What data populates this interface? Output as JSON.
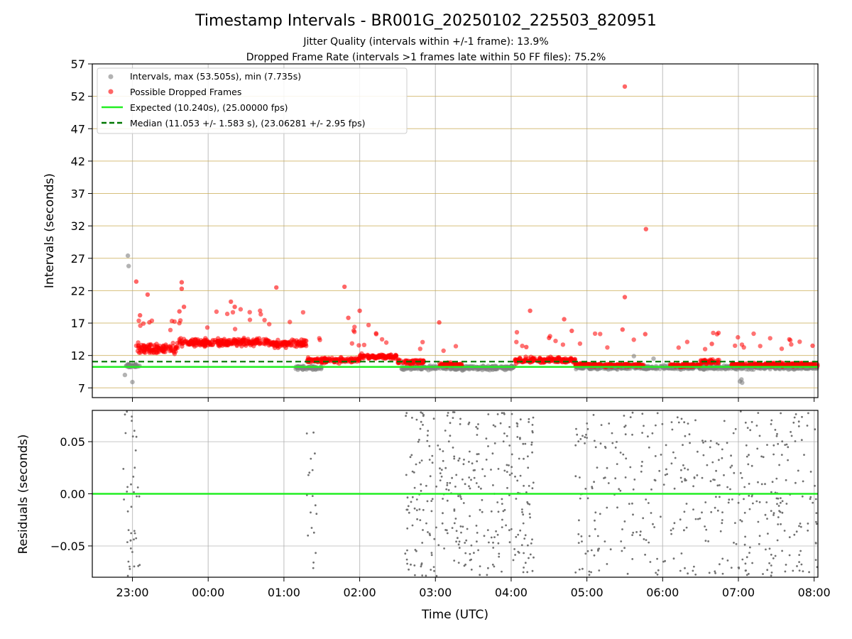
{
  "chart_data": {
    "type": "scatter",
    "title": "Timestamp Intervals - BR001G_20250102_225503_820951",
    "subtitles": [
      "Jitter Quality (intervals within +/-1 frame): 13.9%",
      "Dropped Frame Rate (intervals >1 frames late within 50 FF files): 75.2%"
    ],
    "xlabel": "Time (UTC)",
    "x_ticks": [
      "23:00",
      "00:00",
      "01:00",
      "02:00",
      "03:00",
      "04:00",
      "05:00",
      "06:00",
      "07:00",
      "08:00"
    ],
    "x_range_hours": [
      -0.53,
      9.05
    ],
    "top_panel": {
      "ylabel": "Intervals (seconds)",
      "ylim": [
        5.5,
        57
      ],
      "y_ticks": [
        7,
        12,
        17,
        22,
        27,
        32,
        37,
        42,
        47,
        52,
        57
      ],
      "grid": true,
      "legend": {
        "placement": "top-left",
        "entries": [
          {
            "label": "Intervals, max (53.505s), min (7.735s)",
            "marker": "circle",
            "color": "#808080"
          },
          {
            "label": "Possible Dropped Frames",
            "marker": "circle",
            "color": "#ff0000"
          },
          {
            "label": "Expected (10.240s), (25.00000 fps)",
            "marker": "line",
            "color": "#22ee22"
          },
          {
            "label": "Median (11.053 +/- 1.583 s), (23.06281 +/- 2.95 fps)",
            "marker": "dashed-line",
            "color": "#007700"
          }
        ]
      },
      "expected_interval": 10.24,
      "median_interval": 11.053,
      "max_interval": 53.505,
      "min_interval": 7.735,
      "series": [
        {
          "name": "Intervals, max (53.505s), min (7.735s)",
          "color": "#808080",
          "segments": [
            {
              "x0": -0.1,
              "x1": 0.1,
              "center": 10.4,
              "spread": 0.4
            },
            {
              "x0": 2.15,
              "x1": 2.5,
              "center": 10.1,
              "spread": 0.4
            },
            {
              "x0": 3.55,
              "x1": 5.05,
              "center": 10.1,
              "spread": 0.45
            },
            {
              "x0": 5.85,
              "x1": 9.05,
              "center": 10.15,
              "spread": 0.45
            }
          ],
          "outliers": [
            [
              -0.06,
              27.4
            ],
            [
              -0.05,
              25.8
            ],
            [
              0.0,
              7.9
            ],
            [
              -0.1,
              9.0
            ],
            [
              8.02,
              8.0
            ],
            [
              8.04,
              8.3
            ],
            [
              8.05,
              7.8
            ],
            [
              6.62,
              11.9
            ],
            [
              6.88,
              11.5
            ]
          ]
        },
        {
          "name": "Possible Dropped Frames",
          "color": "#ff0000",
          "segments": [
            {
              "x0": 0.05,
              "x1": 0.6,
              "center": 13.1,
              "spread": 1.0
            },
            {
              "x0": 0.6,
              "x1": 1.3,
              "center": 14.0,
              "spread": 0.9
            },
            {
              "x0": 1.3,
              "x1": 1.8,
              "center": 14.1,
              "spread": 0.8
            },
            {
              "x0": 1.8,
              "x1": 2.3,
              "center": 13.8,
              "spread": 0.8
            },
            {
              "x0": 2.3,
              "x1": 3.0,
              "center": 11.3,
              "spread": 0.6
            },
            {
              "x0": 3.0,
              "x1": 3.5,
              "center": 11.8,
              "spread": 0.6
            },
            {
              "x0": 3.5,
              "x1": 3.85,
              "center": 11.0,
              "spread": 0.5
            },
            {
              "x0": 4.05,
              "x1": 4.35,
              "center": 10.6,
              "spread": 0.4
            },
            {
              "x0": 5.05,
              "x1": 5.85,
              "center": 11.3,
              "spread": 0.6
            },
            {
              "x0": 5.85,
              "x1": 6.1,
              "center": 10.6,
              "spread": 0.3
            },
            {
              "x0": 6.1,
              "x1": 6.45,
              "center": 10.5,
              "spread": 0.3
            },
            {
              "x0": 6.45,
              "x1": 6.75,
              "center": 10.5,
              "spread": 0.3
            },
            {
              "x0": 7.1,
              "x1": 7.5,
              "center": 10.5,
              "spread": 0.3
            },
            {
              "x0": 7.5,
              "x1": 7.75,
              "center": 11.0,
              "spread": 0.5
            },
            {
              "x0": 7.9,
              "x1": 9.05,
              "center": 10.6,
              "spread": 0.4
            }
          ],
          "outliers": [
            [
              6.5,
              53.5
            ],
            [
              6.78,
              31.5
            ],
            [
              6.5,
              21.0
            ],
            [
              6.47,
              16.0
            ],
            [
              6.77,
              15.3
            ],
            [
              0.05,
              23.4
            ],
            [
              0.2,
              21.4
            ],
            [
              0.1,
              18.2
            ],
            [
              0.65,
              23.3
            ],
            [
              0.65,
              22.3
            ],
            [
              0.68,
              19.5
            ],
            [
              0.62,
              18.8
            ],
            [
              1.3,
              20.3
            ],
            [
              1.35,
              19.5
            ],
            [
              1.9,
              22.5
            ],
            [
              2.8,
              22.6
            ],
            [
              2.85,
              17.8
            ],
            [
              3.0,
              18.9
            ],
            [
              4.05,
              17.1
            ],
            [
              5.25,
              18.9
            ],
            [
              5.7,
              17.6
            ],
            [
              5.8,
              15.8
            ],
            [
              5.2,
              13.3
            ],
            [
              5.5,
              14.7
            ],
            [
              7.65,
              13.8
            ],
            [
              8.98,
              13.5
            ]
          ]
        }
      ]
    },
    "bottom_panel": {
      "ylabel": "Residuals (seconds)",
      "ylim": [
        -0.08,
        0.08
      ],
      "y_ticks": [
        "0.05",
        "0.00",
        "−0.05"
      ],
      "y_tick_values": [
        0.05,
        0.0,
        -0.05
      ],
      "grid": true,
      "zero_line_color": "#22ee22",
      "series": [
        {
          "name": "Residuals",
          "color": "#707070",
          "segments": [
            {
              "x0": -0.12,
              "x1": 0.1,
              "count": 40
            },
            {
              "x0": 2.3,
              "x1": 2.45,
              "count": 18
            },
            {
              "x0": 3.6,
              "x1": 5.3,
              "count": 330
            },
            {
              "x0": 5.85,
              "x1": 9.05,
              "count": 420
            }
          ]
        }
      ]
    }
  }
}
